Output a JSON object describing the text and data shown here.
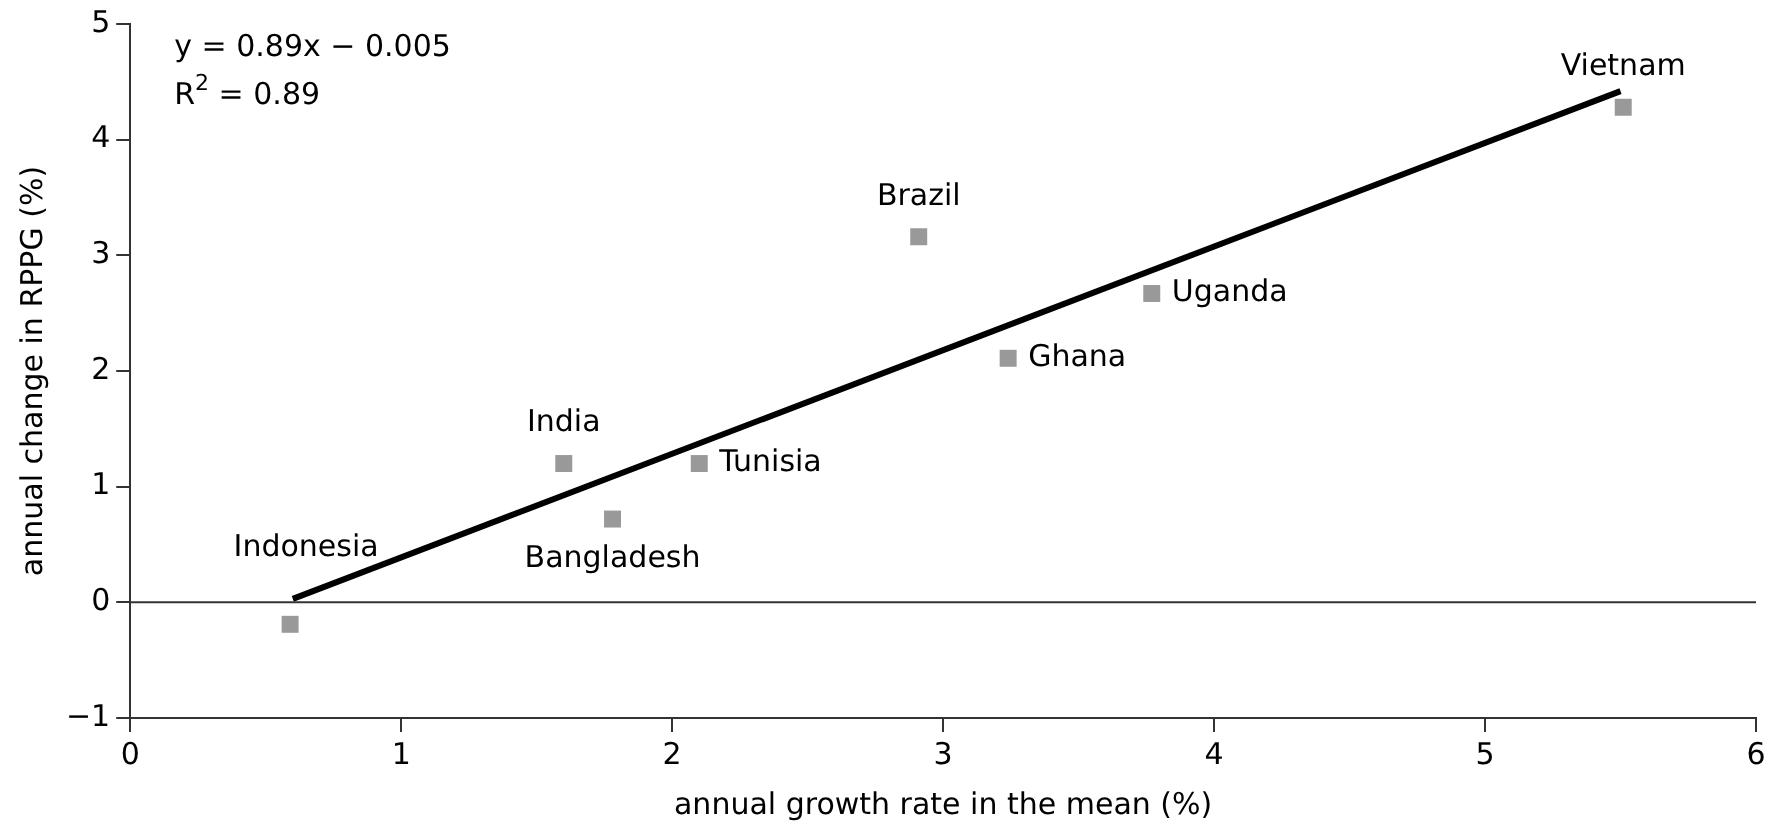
{
  "chart_data": {
    "type": "scatter",
    "xlabel": "annual growth rate in the mean (%)",
    "ylabel": "annual change in RPPG (%)",
    "series": [
      {
        "marker": "square",
        "color": "#999999",
        "x": [
          0.59,
          1.6,
          1.78,
          2.1,
          2.91,
          3.24,
          3.77,
          5.51
        ],
        "values": [
          -0.19,
          1.2,
          0.72,
          1.2,
          3.16,
          2.11,
          2.67,
          4.28
        ]
      },
      {
        "type": "line",
        "color": "#000000",
        "x": [
          0.6,
          5.5
        ],
        "values": [
          0.03,
          4.42
        ]
      }
    ],
    "xlim": [
      0,
      6
    ],
    "xticks": [
      0,
      1,
      2,
      3,
      4,
      5,
      6
    ],
    "ylim": [
      -1,
      5
    ],
    "yticks": [
      -1,
      0,
      1,
      2,
      3,
      4,
      5
    ],
    "grid": false,
    "legend": false,
    "ref_lines": [
      {
        "axis": "y",
        "value": 0,
        "color": "#333333"
      }
    ],
    "annotations": [
      "y = 0.89x − 0.005\nR$^{2}$ = 0.89",
      {
        "text": "Indonesia",
        "x": 0.59,
        "y": -0.19
      },
      {
        "text": "India",
        "x": 1.6,
        "y": 1.2
      },
      {
        "text": "Bangladesh",
        "x": 1.78,
        "y": 0.72
      },
      {
        "text": "Tunisia",
        "x": 2.1,
        "y": 1.2
      },
      {
        "text": "Brazil",
        "x": 2.91,
        "y": 3.16
      },
      {
        "text": "Ghana",
        "x": 3.24,
        "y": 2.11
      },
      {
        "text": "Uganda",
        "x": 3.77,
        "y": 2.67
      },
      {
        "text": "Vietnam",
        "x": 5.51,
        "y": 4.28
      }
    ]
  }
}
